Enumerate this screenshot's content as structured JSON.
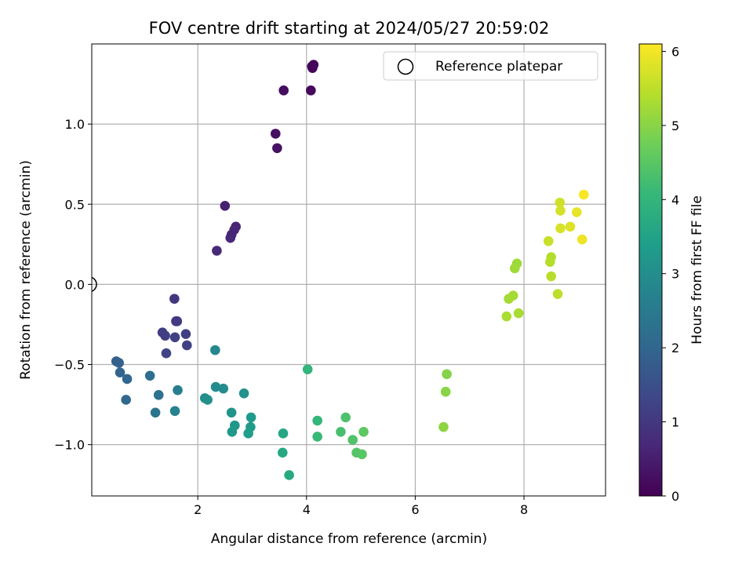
{
  "chart_data": {
    "type": "scatter",
    "title": "FOV centre drift starting at 2024/05/27 20:59:02",
    "xlabel": "Angular distance from reference (arcmin)",
    "ylabel": "Rotation from reference (arcmin)",
    "xlim": [
      0.05,
      9.5
    ],
    "ylim": [
      -1.32,
      1.5
    ],
    "xticks": [
      2,
      4,
      6,
      8
    ],
    "xtick_labels": [
      "2",
      "4",
      "6",
      "8"
    ],
    "yticks": [
      1.0,
      0.5,
      0.0,
      -0.5,
      -1.0
    ],
    "ytick_labels": [
      "1.0",
      "0.5",
      "0.0",
      "−0.5",
      "−1.0"
    ],
    "grid": true,
    "colormap": "viridis",
    "colorbar": {
      "label": "Hours from first FF file",
      "range": [
        0,
        6.1
      ],
      "ticks": [
        0,
        1,
        2,
        3,
        4,
        5,
        6
      ],
      "tick_labels": [
        "0",
        "1",
        "2",
        "3",
        "4",
        "5",
        "6"
      ]
    },
    "legend": {
      "position": "top-right",
      "entries": [
        "Reference platepar"
      ]
    },
    "reference_point": {
      "x": 0.0,
      "y": 0.0,
      "label": "Reference platepar"
    },
    "points": [
      {
        "x": 4.1,
        "y": 1.36,
        "c": 0.05
      },
      {
        "x": 4.13,
        "y": 1.37,
        "c": 0.08
      },
      {
        "x": 4.11,
        "y": 1.35,
        "c": 0.1
      },
      {
        "x": 4.08,
        "y": 1.21,
        "c": 0.15
      },
      {
        "x": 3.58,
        "y": 1.21,
        "c": 0.2
      },
      {
        "x": 3.43,
        "y": 0.94,
        "c": 0.25
      },
      {
        "x": 3.46,
        "y": 0.85,
        "c": 0.3
      },
      {
        "x": 2.5,
        "y": 0.49,
        "c": 0.55
      },
      {
        "x": 2.7,
        "y": 0.36,
        "c": 0.6
      },
      {
        "x": 2.67,
        "y": 0.34,
        "c": 0.62
      },
      {
        "x": 2.62,
        "y": 0.31,
        "c": 0.65
      },
      {
        "x": 2.6,
        "y": 0.29,
        "c": 0.68
      },
      {
        "x": 2.35,
        "y": 0.21,
        "c": 0.7
      },
      {
        "x": 1.57,
        "y": -0.09,
        "c": 1.0
      },
      {
        "x": 1.6,
        "y": -0.23,
        "c": 1.05
      },
      {
        "x": 1.62,
        "y": -0.23,
        "c": 1.07
      },
      {
        "x": 1.35,
        "y": -0.3,
        "c": 1.1
      },
      {
        "x": 1.4,
        "y": -0.32,
        "c": 1.12
      },
      {
        "x": 1.78,
        "y": -0.31,
        "c": 1.15
      },
      {
        "x": 1.58,
        "y": -0.33,
        "c": 1.18
      },
      {
        "x": 1.8,
        "y": -0.38,
        "c": 1.2
      },
      {
        "x": 1.42,
        "y": -0.43,
        "c": 1.25
      },
      {
        "x": 0.5,
        "y": -0.48,
        "c": 1.85
      },
      {
        "x": 0.55,
        "y": -0.49,
        "c": 1.9
      },
      {
        "x": 0.57,
        "y": -0.55,
        "c": 1.95
      },
      {
        "x": 0.7,
        "y": -0.59,
        "c": 2.0
      },
      {
        "x": 0.68,
        "y": -0.72,
        "c": 2.05
      },
      {
        "x": 1.12,
        "y": -0.57,
        "c": 2.2
      },
      {
        "x": 1.28,
        "y": -0.69,
        "c": 2.3
      },
      {
        "x": 1.22,
        "y": -0.8,
        "c": 2.35
      },
      {
        "x": 1.63,
        "y": -0.66,
        "c": 2.6
      },
      {
        "x": 1.58,
        "y": -0.79,
        "c": 2.7
      },
      {
        "x": 2.32,
        "y": -0.41,
        "c": 2.85
      },
      {
        "x": 2.33,
        "y": -0.64,
        "c": 2.9
      },
      {
        "x": 2.47,
        "y": -0.65,
        "c": 2.95
      },
      {
        "x": 2.13,
        "y": -0.71,
        "c": 3.0
      },
      {
        "x": 2.18,
        "y": -0.72,
        "c": 3.05
      },
      {
        "x": 2.85,
        "y": -0.68,
        "c": 3.1
      },
      {
        "x": 2.62,
        "y": -0.8,
        "c": 3.15
      },
      {
        "x": 2.68,
        "y": -0.88,
        "c": 3.2
      },
      {
        "x": 2.63,
        "y": -0.92,
        "c": 3.25
      },
      {
        "x": 2.98,
        "y": -0.83,
        "c": 3.3
      },
      {
        "x": 2.97,
        "y": -0.89,
        "c": 3.35
      },
      {
        "x": 2.93,
        "y": -0.93,
        "c": 3.4
      },
      {
        "x": 3.57,
        "y": -0.93,
        "c": 3.6
      },
      {
        "x": 3.56,
        "y": -1.05,
        "c": 3.65
      },
      {
        "x": 3.68,
        "y": -1.19,
        "c": 3.7
      },
      {
        "x": 4.02,
        "y": -0.53,
        "c": 4.0
      },
      {
        "x": 4.2,
        "y": -0.85,
        "c": 4.05
      },
      {
        "x": 4.2,
        "y": -0.95,
        "c": 4.1
      },
      {
        "x": 4.63,
        "y": -0.92,
        "c": 4.3
      },
      {
        "x": 4.72,
        "y": -0.83,
        "c": 4.35
      },
      {
        "x": 4.85,
        "y": -0.97,
        "c": 4.4
      },
      {
        "x": 4.92,
        "y": -1.05,
        "c": 4.45
      },
      {
        "x": 5.02,
        "y": -1.06,
        "c": 4.5
      },
      {
        "x": 5.05,
        "y": -0.92,
        "c": 4.55
      },
      {
        "x": 6.58,
        "y": -0.56,
        "c": 4.95
      },
      {
        "x": 6.56,
        "y": -0.67,
        "c": 5.0
      },
      {
        "x": 6.52,
        "y": -0.89,
        "c": 5.05
      },
      {
        "x": 7.87,
        "y": 0.13,
        "c": 5.2
      },
      {
        "x": 7.83,
        "y": 0.1,
        "c": 5.22
      },
      {
        "x": 7.8,
        "y": -0.07,
        "c": 5.25
      },
      {
        "x": 7.72,
        "y": -0.09,
        "c": 5.28
      },
      {
        "x": 7.9,
        "y": -0.18,
        "c": 5.3
      },
      {
        "x": 7.68,
        "y": -0.2,
        "c": 5.33
      },
      {
        "x": 8.5,
        "y": 0.17,
        "c": 5.4
      },
      {
        "x": 8.48,
        "y": 0.14,
        "c": 5.42
      },
      {
        "x": 8.5,
        "y": 0.05,
        "c": 5.45
      },
      {
        "x": 8.62,
        "y": -0.06,
        "c": 5.48
      },
      {
        "x": 8.45,
        "y": 0.27,
        "c": 5.6
      },
      {
        "x": 8.66,
        "y": 0.51,
        "c": 5.65
      },
      {
        "x": 8.67,
        "y": 0.46,
        "c": 5.7
      },
      {
        "x": 8.67,
        "y": 0.35,
        "c": 5.75
      },
      {
        "x": 8.85,
        "y": 0.36,
        "c": 5.8
      },
      {
        "x": 8.97,
        "y": 0.45,
        "c": 5.9
      },
      {
        "x": 9.07,
        "y": 0.28,
        "c": 5.95
      },
      {
        "x": 9.1,
        "y": 0.56,
        "c": 6.05
      }
    ]
  }
}
